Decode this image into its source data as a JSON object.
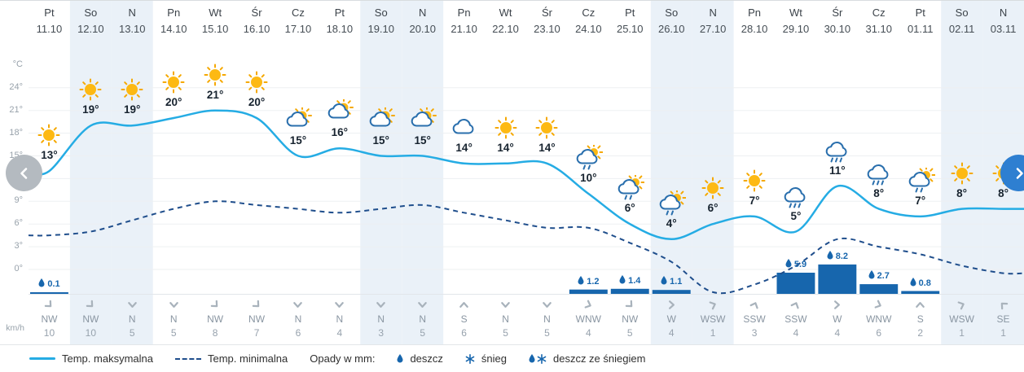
{
  "axis": {
    "unit_temp": "°C",
    "unit_wind": "km/h",
    "temp_ticks": [
      24,
      21,
      18,
      15,
      12,
      9,
      6,
      3,
      0
    ]
  },
  "legend": {
    "max_label": "Temp. maksymalna",
    "min_label": "Temp. minimalna",
    "precip_label": "Opady w mm:",
    "rain_label": "deszcz",
    "snow_label": "śnieg",
    "rain_snow_label": "deszcz ze śniegiem"
  },
  "colors": {
    "max_line": "#25ace4",
    "min_line": "#1f4e8c",
    "bar": "#1766ad",
    "weekend_bg": "#eaf1f8",
    "grid": "#edf0f2",
    "sun": "#fdb913",
    "sun_ray": "#f5a800",
    "cloud_stroke": "#2a6fad",
    "precip_text": "#1766ad",
    "nav_left_bg": "#b4bac0",
    "nav_right_bg": "#2e7fd1"
  },
  "icons": {
    "prev": "chevron-left",
    "next": "chevron-right",
    "rain": "droplet",
    "snow": "snowflake",
    "rain_snow": "droplet-snowflake"
  },
  "chart_data": {
    "type": "line",
    "series_info": [
      {
        "name": "Temp. maksymalna",
        "style": "solid",
        "color": "#25ace4"
      },
      {
        "name": "Temp. minimalna",
        "style": "dashed",
        "color": "#1f4e8c"
      },
      {
        "name": "Opady [mm]",
        "style": "bar",
        "color": "#1766ad"
      }
    ],
    "ylim": [
      0,
      24
    ],
    "days": [
      {
        "day": "Pt",
        "date": "11.10",
        "icon": "sun",
        "temp_max": 13,
        "temp_min": 4.5,
        "precip_mm": 0.1,
        "wind_dir": "NW",
        "wind_kmh": 10,
        "weekend": false
      },
      {
        "day": "So",
        "date": "12.10",
        "icon": "sun",
        "temp_max": 19,
        "temp_min": 5,
        "precip_mm": null,
        "wind_dir": "NW",
        "wind_kmh": 10,
        "weekend": true
      },
      {
        "day": "N",
        "date": "13.10",
        "icon": "sun",
        "temp_max": 19,
        "temp_min": 6.5,
        "precip_mm": null,
        "wind_dir": "N",
        "wind_kmh": 5,
        "weekend": true
      },
      {
        "day": "Pn",
        "date": "14.10",
        "icon": "sun",
        "temp_max": 20,
        "temp_min": 8,
        "precip_mm": null,
        "wind_dir": "N",
        "wind_kmh": 5,
        "weekend": false
      },
      {
        "day": "Wt",
        "date": "15.10",
        "icon": "sun",
        "temp_max": 21,
        "temp_min": 9,
        "precip_mm": null,
        "wind_dir": "NW",
        "wind_kmh": 8,
        "weekend": false
      },
      {
        "day": "Śr",
        "date": "16.10",
        "icon": "sun",
        "temp_max": 20,
        "temp_min": 8.5,
        "precip_mm": null,
        "wind_dir": "NW",
        "wind_kmh": 7,
        "weekend": false
      },
      {
        "day": "Cz",
        "date": "17.10",
        "icon": "sun-cloud",
        "temp_max": 15,
        "temp_min": 8,
        "precip_mm": null,
        "wind_dir": "N",
        "wind_kmh": 6,
        "weekend": false
      },
      {
        "day": "Pt",
        "date": "18.10",
        "icon": "sun-cloud",
        "temp_max": 16,
        "temp_min": 7.5,
        "precip_mm": null,
        "wind_dir": "N",
        "wind_kmh": 4,
        "weekend": false
      },
      {
        "day": "So",
        "date": "19.10",
        "icon": "sun-cloud",
        "temp_max": 15,
        "temp_min": 8,
        "precip_mm": null,
        "wind_dir": "N",
        "wind_kmh": 3,
        "weekend": true
      },
      {
        "day": "N",
        "date": "20.10",
        "icon": "sun-cloud",
        "temp_max": 15,
        "temp_min": 8.5,
        "precip_mm": null,
        "wind_dir": "N",
        "wind_kmh": 5,
        "weekend": true
      },
      {
        "day": "Pn",
        "date": "21.10",
        "icon": "cloud",
        "temp_max": 14,
        "temp_min": 7.5,
        "precip_mm": null,
        "wind_dir": "S",
        "wind_kmh": 6,
        "weekend": false
      },
      {
        "day": "Wt",
        "date": "22.10",
        "icon": "sun",
        "temp_max": 14,
        "temp_min": 6.5,
        "precip_mm": null,
        "wind_dir": "N",
        "wind_kmh": 5,
        "weekend": false
      },
      {
        "day": "Śr",
        "date": "23.10",
        "icon": "sun",
        "temp_max": 14,
        "temp_min": 5.5,
        "precip_mm": null,
        "wind_dir": "N",
        "wind_kmh": 5,
        "weekend": false
      },
      {
        "day": "Cz",
        "date": "24.10",
        "icon": "rain-sun",
        "temp_max": 10,
        "temp_min": 5.5,
        "precip_mm": 1.2,
        "wind_dir": "WNW",
        "wind_kmh": 4,
        "weekend": false
      },
      {
        "day": "Pt",
        "date": "25.10",
        "icon": "rain-sun",
        "temp_max": 6,
        "temp_min": 3.5,
        "precip_mm": 1.4,
        "wind_dir": "NW",
        "wind_kmh": 5,
        "weekend": false
      },
      {
        "day": "So",
        "date": "26.10",
        "icon": "rain-sun",
        "temp_max": 4,
        "temp_min": 1,
        "precip_mm": 1.1,
        "wind_dir": "W",
        "wind_kmh": 4,
        "weekend": true
      },
      {
        "day": "N",
        "date": "27.10",
        "icon": "sun",
        "temp_max": 6,
        "temp_min": -3,
        "precip_mm": null,
        "wind_dir": "WSW",
        "wind_kmh": 1,
        "weekend": true
      },
      {
        "day": "Pn",
        "date": "28.10",
        "icon": "sun",
        "temp_max": 7,
        "temp_min": -2,
        "precip_mm": null,
        "wind_dir": "SSW",
        "wind_kmh": 3,
        "weekend": false
      },
      {
        "day": "Wt",
        "date": "29.10",
        "icon": "rain",
        "temp_max": 5,
        "temp_min": 0.5,
        "precip_mm": 5.9,
        "wind_dir": "SSW",
        "wind_kmh": 4,
        "weekend": false
      },
      {
        "day": "Śr",
        "date": "30.10",
        "icon": "rain",
        "temp_max": 11,
        "temp_min": 4,
        "precip_mm": 8.2,
        "wind_dir": "W",
        "wind_kmh": 4,
        "weekend": false
      },
      {
        "day": "Cz",
        "date": "31.10",
        "icon": "rain",
        "temp_max": 8,
        "temp_min": 3,
        "precip_mm": 2.7,
        "wind_dir": "WNW",
        "wind_kmh": 6,
        "weekend": false
      },
      {
        "day": "Pt",
        "date": "01.11",
        "icon": "rain-sun",
        "temp_max": 7,
        "temp_min": 2,
        "precip_mm": 0.8,
        "wind_dir": "S",
        "wind_kmh": 2,
        "weekend": false
      },
      {
        "day": "So",
        "date": "02.11",
        "icon": "sun",
        "temp_max": 8,
        "temp_min": 0.5,
        "precip_mm": null,
        "wind_dir": "WSW",
        "wind_kmh": 1,
        "weekend": true
      },
      {
        "day": "N",
        "date": "03.11",
        "icon": "sun",
        "temp_max": 8,
        "temp_min": -0.5,
        "precip_mm": null,
        "wind_dir": "SE",
        "wind_kmh": 1,
        "weekend": true
      }
    ]
  }
}
